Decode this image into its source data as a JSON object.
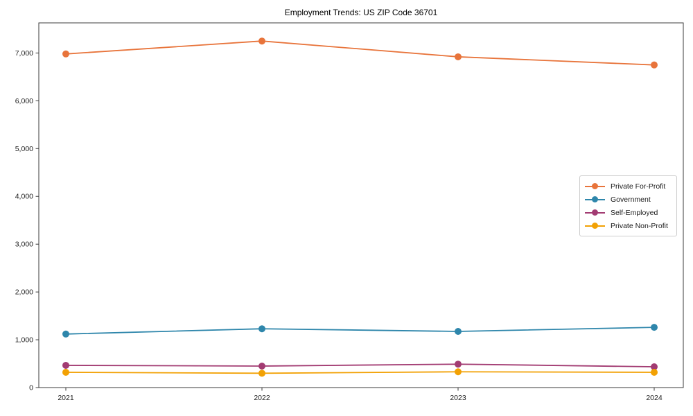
{
  "title": "Employment Trends: US ZIP Code 36701",
  "chart_data": {
    "type": "line",
    "title": "Employment Trends: US ZIP Code 36701",
    "xlabel": "",
    "ylabel": "",
    "x": [
      "2021",
      "2022",
      "2023",
      "2024"
    ],
    "series": [
      {
        "name": "Private For-Profit",
        "color": "#E8743B",
        "values": [
          6980,
          7250,
          6920,
          6750
        ]
      },
      {
        "name": "Government",
        "color": "#2E86AB",
        "values": [
          1120,
          1230,
          1175,
          1260
        ]
      },
      {
        "name": "Self-Employed",
        "color": "#A23B72",
        "values": [
          465,
          450,
          490,
          435
        ]
      },
      {
        "name": "Private Non-Profit",
        "color": "#F2A104",
        "values": [
          320,
          300,
          330,
          320
        ]
      }
    ],
    "ylim": [
      0,
      7630
    ],
    "yticks": [
      0,
      1000,
      2000,
      3000,
      4000,
      5000,
      6000,
      7000
    ],
    "ytick_labels": [
      "0",
      "1,000",
      "2,000",
      "3,000",
      "4,000",
      "5,000",
      "6,000",
      "7,000"
    ],
    "grid": false,
    "legend_position": "center-right",
    "axis_color": "#3b3b3b",
    "tick_label_color": "#1a1a1a"
  }
}
